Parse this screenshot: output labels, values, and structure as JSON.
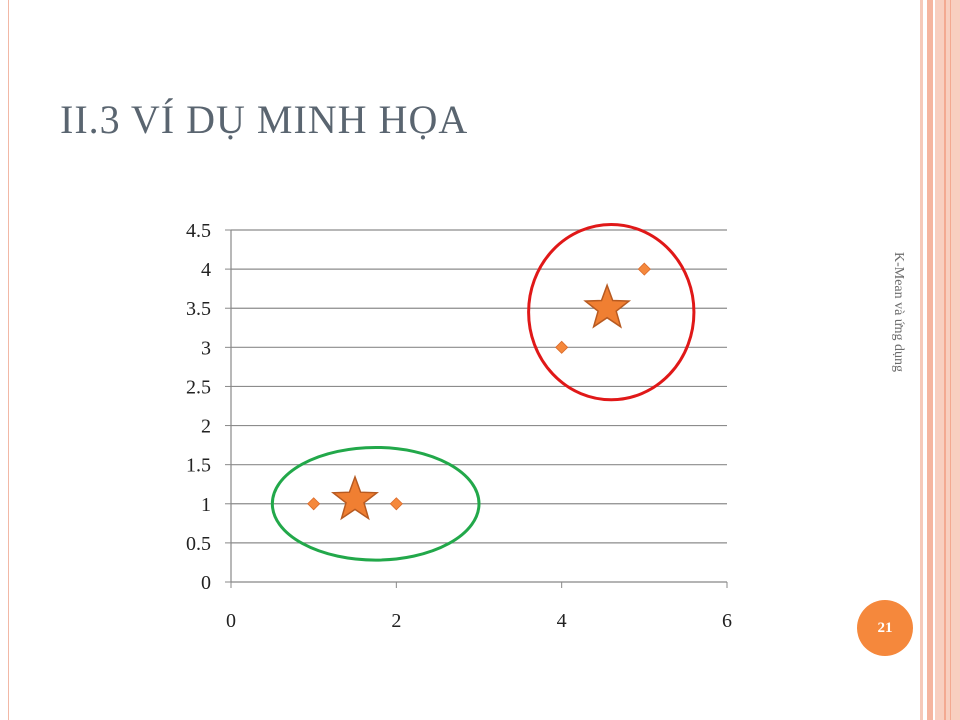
{
  "slide": {
    "title": "II.3 VÍ DỤ MINH HỌA",
    "side_text": "K-Mean và ứng dụng",
    "page_number": "21"
  },
  "chart_data": {
    "type": "scatter",
    "xlim": [
      0,
      6
    ],
    "ylim": [
      0,
      4.5
    ],
    "x_ticks": [
      0,
      2,
      4,
      6
    ],
    "y_ticks": [
      0,
      0.5,
      1,
      1.5,
      2,
      2.5,
      3,
      3.5,
      4,
      4.5
    ],
    "grid": "horizontal",
    "points": [
      {
        "x": 1,
        "y": 1
      },
      {
        "x": 2,
        "y": 1
      },
      {
        "x": 4,
        "y": 3
      },
      {
        "x": 5,
        "y": 4
      }
    ],
    "centroids": [
      {
        "x": 1.5,
        "y": 1.05
      },
      {
        "x": 4.55,
        "y": 3.5
      }
    ],
    "clusters": [
      {
        "cx": 1.75,
        "cy": 1.0,
        "rx": 1.25,
        "ry": 0.72,
        "color": "#22a84a"
      },
      {
        "cx": 4.6,
        "cy": 3.45,
        "rx": 1.0,
        "ry": 1.12,
        "color": "#e01818"
      }
    ],
    "colors": {
      "point": "#f5883c",
      "centroid_fill": "#f07f32",
      "centroid_stroke": "#b75a21",
      "grid": "#8c8c8c",
      "axis": "#888888"
    }
  }
}
